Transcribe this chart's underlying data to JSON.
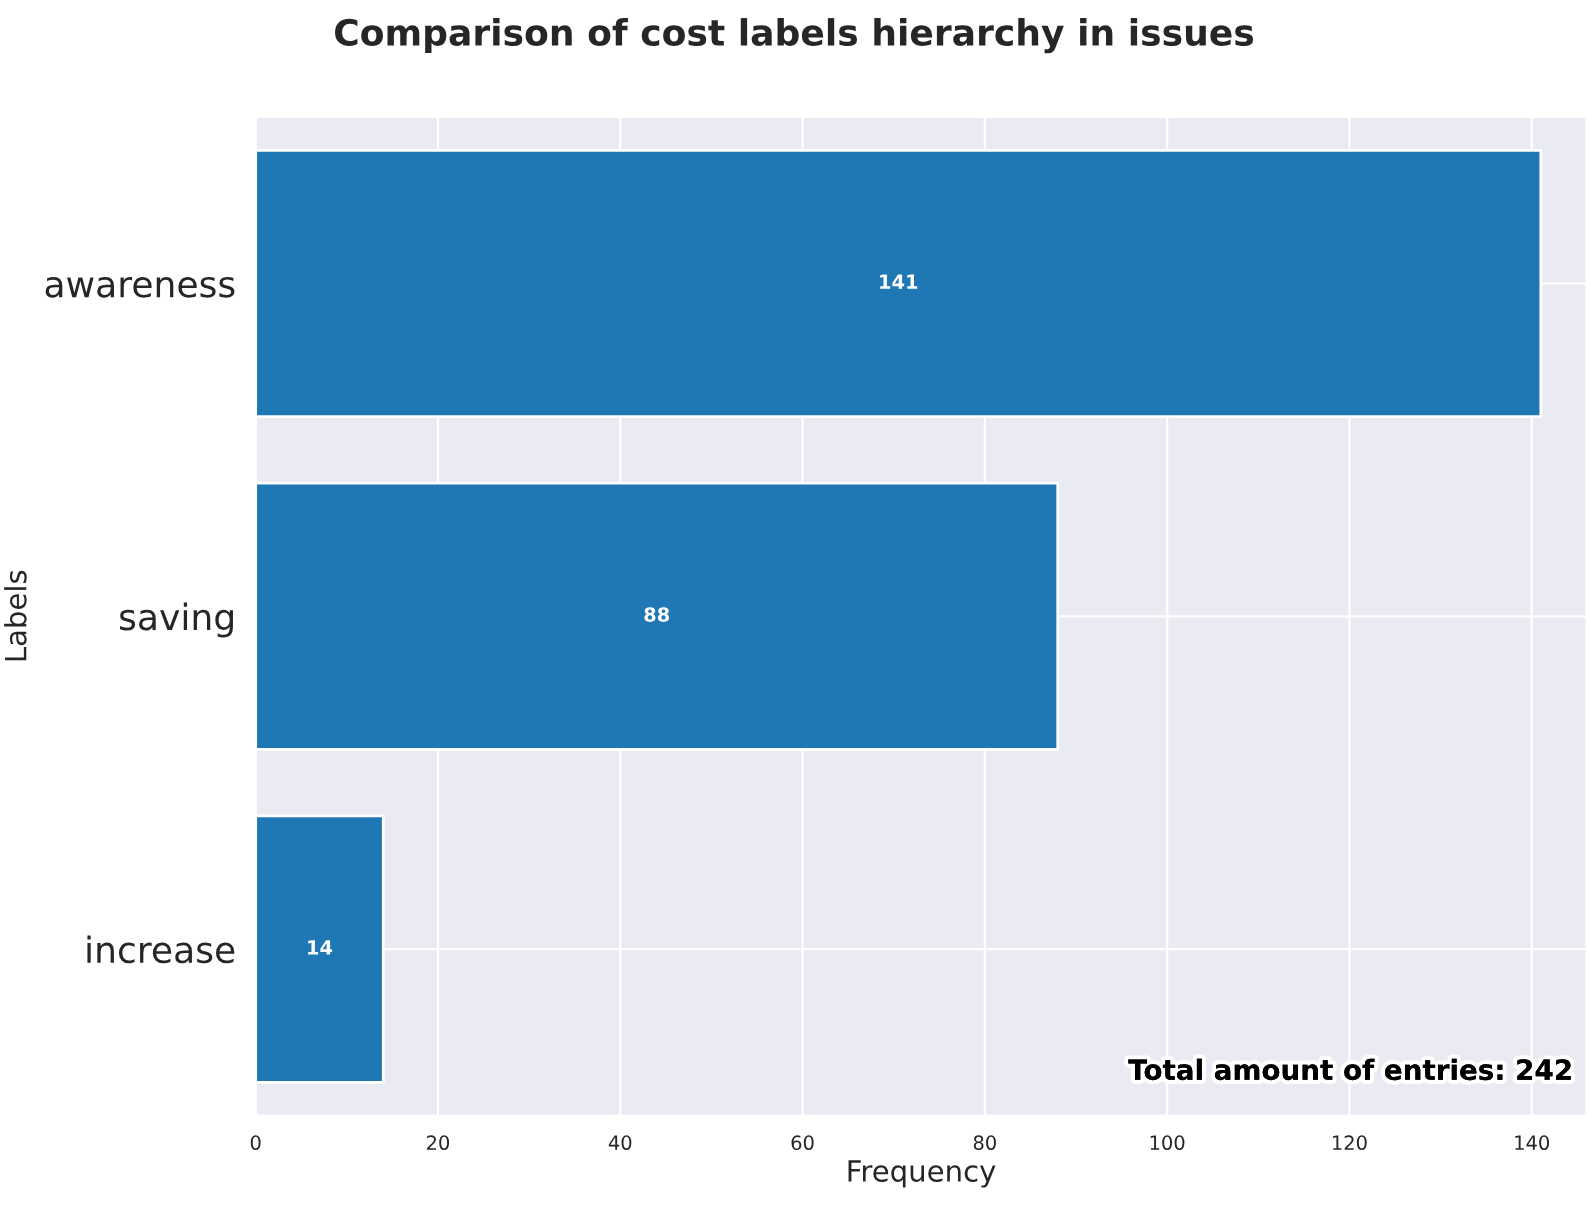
{
  "chart_data": {
    "type": "bar",
    "orientation": "horizontal",
    "title": "Comparison of cost labels hierarchy in issues",
    "xlabel": "Frequency",
    "ylabel": "Labels",
    "categories": [
      "awareness",
      "saving",
      "increase"
    ],
    "values": [
      141,
      88,
      14
    ],
    "color": "#1f77b4",
    "xlim": [
      0,
      146
    ],
    "xticks": [
      0,
      20,
      40,
      60,
      80,
      100,
      120,
      140
    ],
    "data_labels": true,
    "grid": true,
    "legend": false,
    "annotations": [
      "Total amount of entries: 242"
    ]
  }
}
